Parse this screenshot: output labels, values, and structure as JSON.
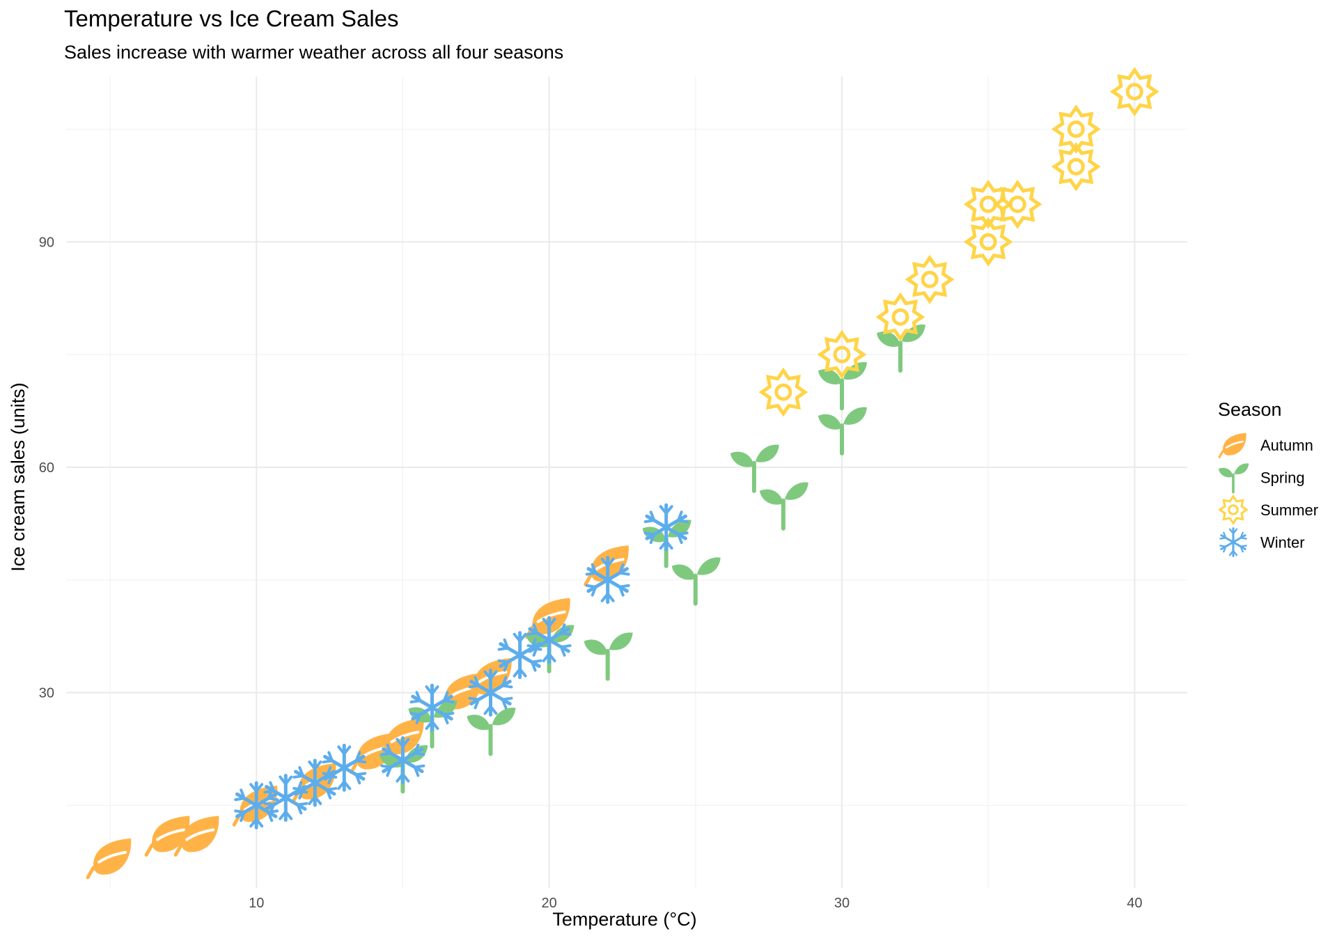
{
  "chart_data": {
    "type": "scatter",
    "title": "Temperature vs Ice Cream Sales",
    "subtitle": "Sales increase with warmer weather across all four seasons",
    "xlabel": "Temperature (°C)",
    "ylabel": "Ice cream sales (units)",
    "xlim": [
      3.5,
      41.8
    ],
    "ylim": [
      4,
      112
    ],
    "x_ticks": [
      10,
      20,
      30,
      40
    ],
    "y_ticks": [
      30,
      60,
      90
    ],
    "x_tick_labels": [
      "10",
      "20",
      "30",
      "40"
    ],
    "y_tick_labels": [
      "30",
      "60",
      "90"
    ],
    "grid": true,
    "legend": {
      "title": "Season",
      "position": "right"
    },
    "series": [
      {
        "name": "Autumn",
        "color": "#FFB347",
        "icon": "leaf-icon",
        "points": [
          [
            5,
            8
          ],
          [
            7,
            11
          ],
          [
            8,
            11
          ],
          [
            10,
            15
          ],
          [
            12,
            18
          ],
          [
            14,
            22
          ],
          [
            15,
            24
          ],
          [
            17,
            30
          ],
          [
            18,
            32
          ],
          [
            20,
            40
          ],
          [
            22,
            47
          ]
        ]
      },
      {
        "name": "Spring",
        "color": "#7FC97F",
        "icon": "sprout-icon",
        "points": [
          [
            15,
            20
          ],
          [
            16,
            26
          ],
          [
            18,
            25
          ],
          [
            20,
            36
          ],
          [
            22,
            35
          ],
          [
            24,
            50
          ],
          [
            25,
            45
          ],
          [
            27,
            60
          ],
          [
            28,
            55
          ],
          [
            30,
            65
          ],
          [
            30,
            71
          ],
          [
            32,
            76
          ]
        ]
      },
      {
        "name": "Summer",
        "color": "#FFD447",
        "icon": "sun-icon",
        "points": [
          [
            28,
            70
          ],
          [
            30,
            75
          ],
          [
            32,
            80
          ],
          [
            33,
            85
          ],
          [
            35,
            90
          ],
          [
            35,
            95
          ],
          [
            36,
            95
          ],
          [
            38,
            100
          ],
          [
            38,
            105
          ],
          [
            40,
            110
          ]
        ]
      },
      {
        "name": "Winter",
        "color": "#5DADEC",
        "icon": "snowflake-icon",
        "points": [
          [
            10,
            15
          ],
          [
            11,
            16
          ],
          [
            12,
            18
          ],
          [
            13,
            20
          ],
          [
            15,
            21
          ],
          [
            16,
            28
          ],
          [
            18,
            30
          ],
          [
            19,
            35
          ],
          [
            20,
            37
          ],
          [
            22,
            45
          ],
          [
            24,
            52
          ]
        ]
      }
    ]
  }
}
